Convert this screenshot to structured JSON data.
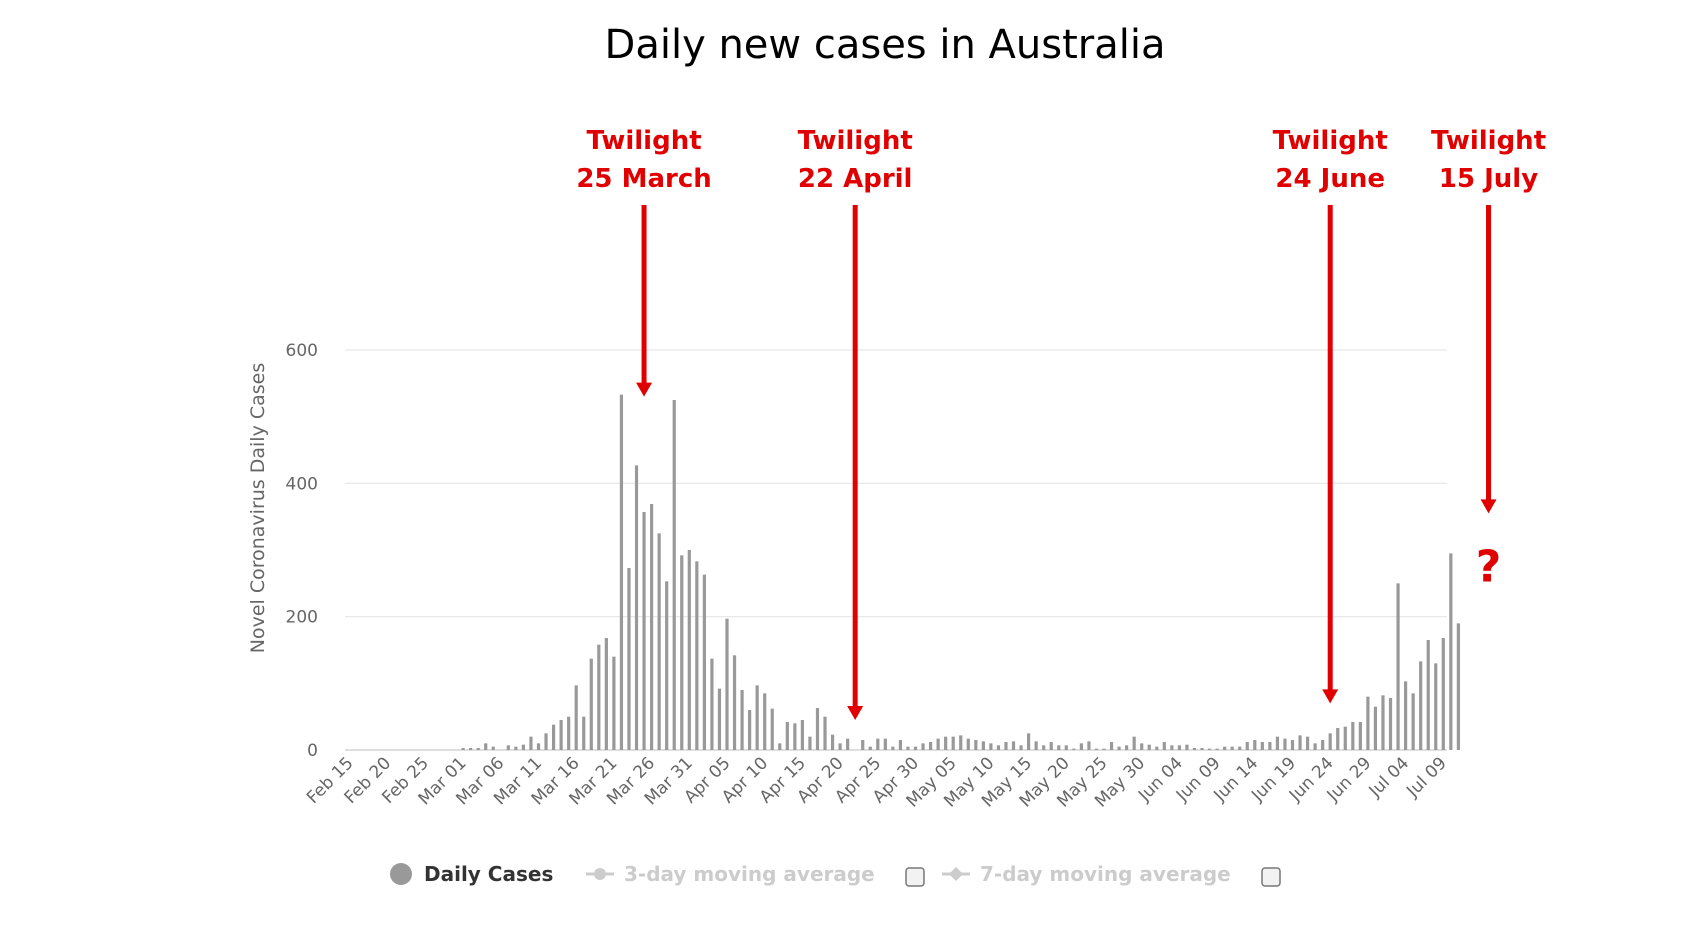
{
  "chart_data": {
    "type": "bar",
    "title": "Daily new cases in Australia",
    "ylabel": "Novel Coronavirus Daily Cases",
    "xlabel": "",
    "ylim": [
      0,
      600
    ],
    "yticks": [
      0,
      200,
      400,
      600
    ],
    "grid": true,
    "legend_position": "bottom",
    "categories": [
      "Feb 15",
      "Feb 16",
      "Feb 17",
      "Feb 18",
      "Feb 19",
      "Feb 20",
      "Feb 21",
      "Feb 22",
      "Feb 23",
      "Feb 24",
      "Feb 25",
      "Feb 26",
      "Feb 27",
      "Feb 28",
      "Feb 29",
      "Mar 01",
      "Mar 02",
      "Mar 03",
      "Mar 04",
      "Mar 05",
      "Mar 06",
      "Mar 07",
      "Mar 08",
      "Mar 09",
      "Mar 10",
      "Mar 11",
      "Mar 12",
      "Mar 13",
      "Mar 14",
      "Mar 15",
      "Mar 16",
      "Mar 17",
      "Mar 18",
      "Mar 19",
      "Mar 20",
      "Mar 21",
      "Mar 22",
      "Mar 23",
      "Mar 24",
      "Mar 25",
      "Mar 26",
      "Mar 27",
      "Mar 28",
      "Mar 29",
      "Mar 30",
      "Mar 31",
      "Apr 01",
      "Apr 02",
      "Apr 03",
      "Apr 04",
      "Apr 05",
      "Apr 06",
      "Apr 07",
      "Apr 08",
      "Apr 09",
      "Apr 10",
      "Apr 11",
      "Apr 12",
      "Apr 13",
      "Apr 14",
      "Apr 15",
      "Apr 16",
      "Apr 17",
      "Apr 18",
      "Apr 19",
      "Apr 20",
      "Apr 21",
      "Apr 22",
      "Apr 23",
      "Apr 24",
      "Apr 25",
      "Apr 26",
      "Apr 27",
      "Apr 28",
      "Apr 29",
      "Apr 30",
      "May 01",
      "May 02",
      "May 03",
      "May 04",
      "May 05",
      "May 06",
      "May 07",
      "May 08",
      "May 09",
      "May 10",
      "May 11",
      "May 12",
      "May 13",
      "May 14",
      "May 15",
      "May 16",
      "May 17",
      "May 18",
      "May 19",
      "May 20",
      "May 21",
      "May 22",
      "May 23",
      "May 24",
      "May 25",
      "May 26",
      "May 27",
      "May 28",
      "May 29",
      "May 30",
      "May 31",
      "Jun 01",
      "Jun 02",
      "Jun 03",
      "Jun 04",
      "Jun 05",
      "Jun 06",
      "Jun 07",
      "Jun 08",
      "Jun 09",
      "Jun 10",
      "Jun 11",
      "Jun 12",
      "Jun 13",
      "Jun 14",
      "Jun 15",
      "Jun 16",
      "Jun 17",
      "Jun 18",
      "Jun 19",
      "Jun 20",
      "Jun 21",
      "Jun 22",
      "Jun 23",
      "Jun 24",
      "Jun 25",
      "Jun 26",
      "Jun 27",
      "Jun 28",
      "Jun 29",
      "Jun 30",
      "Jul 01",
      "Jul 02",
      "Jul 03",
      "Jul 04",
      "Jul 05",
      "Jul 06",
      "Jul 07",
      "Jul 08",
      "Jul 09",
      "Jul 10",
      "Jul 11"
    ],
    "tick_labels": [
      "Feb 15",
      "Feb 20",
      "Feb 25",
      "Mar 01",
      "Mar 06",
      "Mar 11",
      "Mar 16",
      "Mar 21",
      "Mar 26",
      "Mar 31",
      "Apr 05",
      "Apr 10",
      "Apr 15",
      "Apr 20",
      "Apr 25",
      "Apr 30",
      "May 05",
      "May 10",
      "May 15",
      "May 20",
      "May 25",
      "May 30",
      "Jun 04",
      "Jun 09",
      "Jun 14",
      "Jun 19",
      "Jun 24",
      "Jun 29",
      "Jul 04",
      "Jul 09"
    ],
    "series": [
      {
        "name": "Daily Cases",
        "color": "#999999",
        "values": [
          0,
          0,
          0,
          0,
          0,
          0,
          0,
          0,
          0,
          0,
          0,
          0,
          0,
          0,
          0,
          3,
          3,
          3,
          10,
          5,
          0,
          7,
          5,
          8,
          20,
          10,
          25,
          38,
          45,
          50,
          97,
          50,
          137,
          158,
          168,
          140,
          533,
          273,
          427,
          357,
          369,
          325,
          253,
          525,
          292,
          300,
          283,
          263,
          137,
          92,
          197,
          142,
          90,
          60,
          97,
          85,
          62,
          10,
          42,
          40,
          45,
          20,
          63,
          50,
          23,
          10,
          17,
          0,
          15,
          5,
          17,
          17,
          5,
          15,
          5,
          5,
          10,
          12,
          17,
          20,
          20,
          22,
          17,
          15,
          13,
          10,
          7,
          12,
          13,
          7,
          25,
          13,
          7,
          12,
          7,
          7,
          2,
          10,
          13,
          2,
          2,
          12,
          5,
          7,
          20,
          10,
          8,
          5,
          12,
          7,
          7,
          8,
          3,
          3,
          2,
          2,
          5,
          5,
          5,
          12,
          15,
          12,
          12,
          20,
          17,
          15,
          22,
          20,
          10,
          15,
          25,
          33,
          35,
          42,
          42,
          80,
          65,
          82,
          78,
          250,
          103,
          85,
          133,
          165,
          130,
          168,
          295,
          190
        ]
      }
    ],
    "legend": {
      "daily_cases": "Daily Cases",
      "three_day": "3-day moving average",
      "seven_day": "7-day moving average",
      "active_color": "#333333",
      "inactive_color": "#cccccc"
    },
    "annotations": [
      {
        "line1": "Twilight",
        "line2": "25 March",
        "date": "Mar 25",
        "arrow_tip_value": 530
      },
      {
        "line1": "Twilight",
        "line2": "22 April",
        "date": "Apr 22",
        "arrow_tip_value": 45
      },
      {
        "line1": "Twilight",
        "line2": "24 June",
        "date": "Jun 24",
        "arrow_tip_value": 70
      },
      {
        "line1": "Twilight",
        "line2": "15 July",
        "date": "Jul 15",
        "arrow_tip_value": 355,
        "mark": "?"
      }
    ],
    "annotation_color": "#e00000"
  }
}
